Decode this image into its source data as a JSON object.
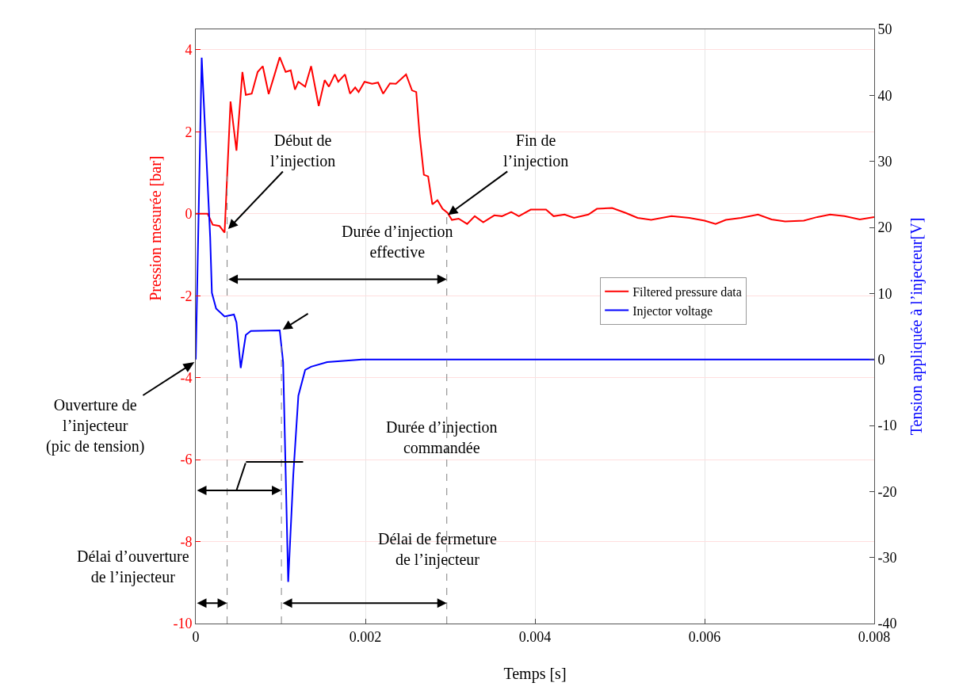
{
  "chart_data": {
    "type": "line",
    "xlabel": "Temps [s]",
    "ylabel": "Pression mesurée [bar]",
    "y2label": "Tension appliquée à l’injecteur[V]",
    "xlim": [
      0,
      0.008
    ],
    "xticks": [
      0,
      0.002,
      0.004,
      0.006,
      0.008
    ],
    "ylim": [
      -10,
      4.5
    ],
    "yticks": [
      -10,
      -8,
      -6,
      -4,
      -2,
      0,
      2,
      4
    ],
    "y2lim": [
      -40,
      50
    ],
    "y2ticks": [
      -40,
      -30,
      -20,
      -10,
      0,
      10,
      20,
      30,
      40,
      50
    ],
    "grid": true,
    "legend": "right",
    "marker": "none",
    "line_style": "solid",
    "series": [
      {
        "name": "Filtered pressure data",
        "color": "#ff0000",
        "x": [
          0,
          0.00014,
          0.0002,
          0.00028,
          0.00034,
          0.00041,
          0.00048,
          0.00055,
          0.00059,
          0.00066,
          0.00073,
          0.00079,
          0.00086,
          0.00093,
          0.00099,
          0.00106,
          0.00112,
          0.00117,
          0.00121,
          0.00129,
          0.00136,
          0.00145,
          0.00152,
          0.00157,
          0.00164,
          0.00168,
          0.00176,
          0.00182,
          0.00188,
          0.00192,
          0.00199,
          0.00208,
          0.00215,
          0.00221,
          0.00229,
          0.00236,
          0.00248,
          0.00255,
          0.0026,
          0.00264,
          0.00269,
          0.00274,
          0.00279,
          0.00285,
          0.00291,
          0.00297,
          0.00302,
          0.0031,
          0.0032,
          0.00329,
          0.00339,
          0.00352,
          0.00361,
          0.00372,
          0.00381,
          0.00395,
          0.00413,
          0.00422,
          0.00435,
          0.00446,
          0.00463,
          0.00473,
          0.00491,
          0.00507,
          0.00521,
          0.00537,
          0.00561,
          0.00582,
          0.006,
          0.00613,
          0.00625,
          0.00643,
          0.00663,
          0.00679,
          0.00695,
          0.00717,
          0.00733,
          0.00748,
          0.00765,
          0.00783,
          0.008
        ],
        "values": [
          0,
          0,
          -0.27,
          -0.3,
          -0.46,
          2.74,
          1.54,
          3.46,
          2.9,
          2.93,
          3.46,
          3.6,
          2.92,
          3.4,
          3.82,
          3.46,
          3.5,
          3.03,
          3.22,
          3.1,
          3.6,
          2.63,
          3.26,
          3.1,
          3.4,
          3.22,
          3.4,
          2.93,
          3.08,
          2.97,
          3.22,
          3.17,
          3.2,
          2.93,
          3.18,
          3.17,
          3.4,
          3.01,
          2.97,
          1.91,
          0.95,
          0.91,
          0.23,
          0.33,
          0.12,
          0.02,
          -0.15,
          -0.12,
          -0.25,
          -0.06,
          -0.21,
          -0.04,
          -0.06,
          0.04,
          -0.06,
          0.1,
          0.1,
          -0.06,
          -0.02,
          -0.1,
          -0.02,
          0.12,
          0.14,
          0.02,
          -0.1,
          -0.15,
          -0.06,
          -0.1,
          -0.17,
          -0.25,
          -0.15,
          -0.1,
          -0.02,
          -0.14,
          -0.19,
          -0.17,
          -0.08,
          -0.02,
          -0.06,
          -0.14,
          -0.08
        ]
      },
      {
        "name": "Injector voltage",
        "color": "#0000ff",
        "axis": "y2",
        "x": [
          0,
          7e-05,
          0.00017,
          0.00019,
          0.00024,
          0.00034,
          0.00045,
          0.00048,
          0.00053,
          0.00059,
          0.00065,
          0.00099,
          0.00103,
          0.00109,
          0.00115,
          0.00121,
          0.00129,
          0.00136,
          0.00155,
          0.00196,
          0.008
        ],
        "values": [
          0,
          45.7,
          18.5,
          10.1,
          7.7,
          6.5,
          6.8,
          5.6,
          -1.3,
          3.7,
          4.3,
          4.4,
          -0.4,
          -33.7,
          -17.5,
          -5.5,
          -1.6,
          -1.1,
          -0.4,
          0,
          0
        ]
      }
    ],
    "ref_lines": [
      {
        "axis": "x",
        "value": 0.00037,
        "color": "#808080",
        "line_style": "dashed"
      },
      {
        "axis": "x",
        "value": 0.00101,
        "color": "#808080",
        "line_style": "dashed"
      },
      {
        "axis": "x",
        "value": 0.00296,
        "color": "#808080",
        "line_style": "dashed"
      }
    ],
    "annotations": [
      {
        "text": "Début de\nl’injection",
        "x": 0.00037,
        "y": -0.4
      },
      {
        "text": "Fin de\nl’injection",
        "x": 0.00296,
        "y": -0.05
      },
      {
        "text": "Ouverture de\nl’injecteur\n(pic de tension)",
        "x": 0,
        "y": -3.6
      },
      "Durée d’injection\neffective",
      "Durée d’injection\ncommandée",
      "Délai d’ouverture\nde l’injecteur",
      "Délai de fermeture\nde l’injecteur"
    ]
  }
}
